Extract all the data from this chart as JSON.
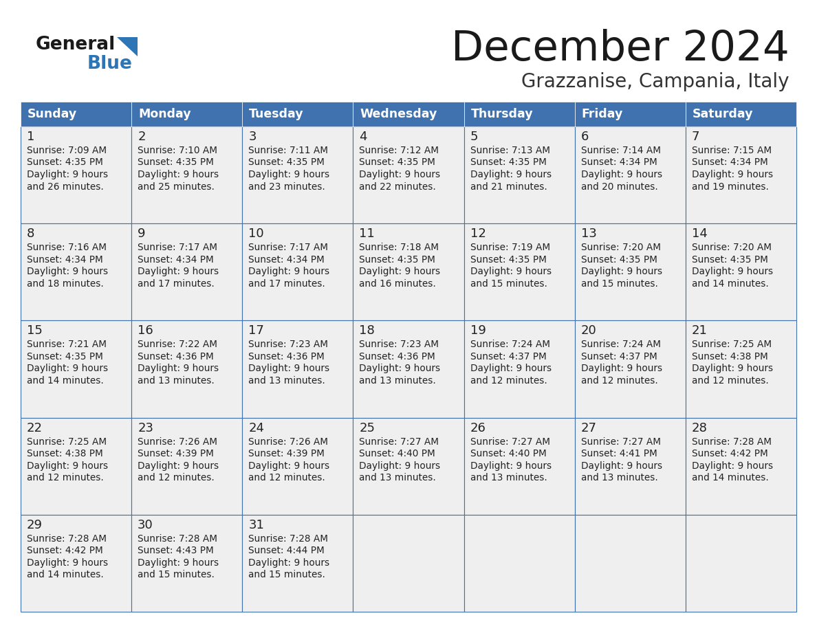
{
  "title": "December 2024",
  "subtitle": "Grazzanise, Campania, Italy",
  "days_of_week": [
    "Sunday",
    "Monday",
    "Tuesday",
    "Wednesday",
    "Thursday",
    "Friday",
    "Saturday"
  ],
  "header_bg": "#4072B0",
  "header_text": "#FFFFFF",
  "cell_border_color": "#4072B0",
  "cell_bg": "#EFEFEF",
  "text_color": "#222222",
  "title_color": "#1a1a1a",
  "subtitle_color": "#333333",
  "logo_general_color": "#1a1a1a",
  "logo_blue_color": "#2E75B6",
  "background_color": "#FFFFFF",
  "calendar_data": [
    [
      {
        "day": 1,
        "sunrise": "7:09 AM",
        "sunset": "4:35 PM",
        "daylight_h": "9 hours",
        "daylight_m": "and 26 minutes."
      },
      {
        "day": 2,
        "sunrise": "7:10 AM",
        "sunset": "4:35 PM",
        "daylight_h": "9 hours",
        "daylight_m": "and 25 minutes."
      },
      {
        "day": 3,
        "sunrise": "7:11 AM",
        "sunset": "4:35 PM",
        "daylight_h": "9 hours",
        "daylight_m": "and 23 minutes."
      },
      {
        "day": 4,
        "sunrise": "7:12 AM",
        "sunset": "4:35 PM",
        "daylight_h": "9 hours",
        "daylight_m": "and 22 minutes."
      },
      {
        "day": 5,
        "sunrise": "7:13 AM",
        "sunset": "4:35 PM",
        "daylight_h": "9 hours",
        "daylight_m": "and 21 minutes."
      },
      {
        "day": 6,
        "sunrise": "7:14 AM",
        "sunset": "4:34 PM",
        "daylight_h": "9 hours",
        "daylight_m": "and 20 minutes."
      },
      {
        "day": 7,
        "sunrise": "7:15 AM",
        "sunset": "4:34 PM",
        "daylight_h": "9 hours",
        "daylight_m": "and 19 minutes."
      }
    ],
    [
      {
        "day": 8,
        "sunrise": "7:16 AM",
        "sunset": "4:34 PM",
        "daylight_h": "9 hours",
        "daylight_m": "and 18 minutes."
      },
      {
        "day": 9,
        "sunrise": "7:17 AM",
        "sunset": "4:34 PM",
        "daylight_h": "9 hours",
        "daylight_m": "and 17 minutes."
      },
      {
        "day": 10,
        "sunrise": "7:17 AM",
        "sunset": "4:34 PM",
        "daylight_h": "9 hours",
        "daylight_m": "and 17 minutes."
      },
      {
        "day": 11,
        "sunrise": "7:18 AM",
        "sunset": "4:35 PM",
        "daylight_h": "9 hours",
        "daylight_m": "and 16 minutes."
      },
      {
        "day": 12,
        "sunrise": "7:19 AM",
        "sunset": "4:35 PM",
        "daylight_h": "9 hours",
        "daylight_m": "and 15 minutes."
      },
      {
        "day": 13,
        "sunrise": "7:20 AM",
        "sunset": "4:35 PM",
        "daylight_h": "9 hours",
        "daylight_m": "and 15 minutes."
      },
      {
        "day": 14,
        "sunrise": "7:20 AM",
        "sunset": "4:35 PM",
        "daylight_h": "9 hours",
        "daylight_m": "and 14 minutes."
      }
    ],
    [
      {
        "day": 15,
        "sunrise": "7:21 AM",
        "sunset": "4:35 PM",
        "daylight_h": "9 hours",
        "daylight_m": "and 14 minutes."
      },
      {
        "day": 16,
        "sunrise": "7:22 AM",
        "sunset": "4:36 PM",
        "daylight_h": "9 hours",
        "daylight_m": "and 13 minutes."
      },
      {
        "day": 17,
        "sunrise": "7:23 AM",
        "sunset": "4:36 PM",
        "daylight_h": "9 hours",
        "daylight_m": "and 13 minutes."
      },
      {
        "day": 18,
        "sunrise": "7:23 AM",
        "sunset": "4:36 PM",
        "daylight_h": "9 hours",
        "daylight_m": "and 13 minutes."
      },
      {
        "day": 19,
        "sunrise": "7:24 AM",
        "sunset": "4:37 PM",
        "daylight_h": "9 hours",
        "daylight_m": "and 12 minutes."
      },
      {
        "day": 20,
        "sunrise": "7:24 AM",
        "sunset": "4:37 PM",
        "daylight_h": "9 hours",
        "daylight_m": "and 12 minutes."
      },
      {
        "day": 21,
        "sunrise": "7:25 AM",
        "sunset": "4:38 PM",
        "daylight_h": "9 hours",
        "daylight_m": "and 12 minutes."
      }
    ],
    [
      {
        "day": 22,
        "sunrise": "7:25 AM",
        "sunset": "4:38 PM",
        "daylight_h": "9 hours",
        "daylight_m": "and 12 minutes."
      },
      {
        "day": 23,
        "sunrise": "7:26 AM",
        "sunset": "4:39 PM",
        "daylight_h": "9 hours",
        "daylight_m": "and 12 minutes."
      },
      {
        "day": 24,
        "sunrise": "7:26 AM",
        "sunset": "4:39 PM",
        "daylight_h": "9 hours",
        "daylight_m": "and 12 minutes."
      },
      {
        "day": 25,
        "sunrise": "7:27 AM",
        "sunset": "4:40 PM",
        "daylight_h": "9 hours",
        "daylight_m": "and 13 minutes."
      },
      {
        "day": 26,
        "sunrise": "7:27 AM",
        "sunset": "4:40 PM",
        "daylight_h": "9 hours",
        "daylight_m": "and 13 minutes."
      },
      {
        "day": 27,
        "sunrise": "7:27 AM",
        "sunset": "4:41 PM",
        "daylight_h": "9 hours",
        "daylight_m": "and 13 minutes."
      },
      {
        "day": 28,
        "sunrise": "7:28 AM",
        "sunset": "4:42 PM",
        "daylight_h": "9 hours",
        "daylight_m": "and 14 minutes."
      }
    ],
    [
      {
        "day": 29,
        "sunrise": "7:28 AM",
        "sunset": "4:42 PM",
        "daylight_h": "9 hours",
        "daylight_m": "and 14 minutes."
      },
      {
        "day": 30,
        "sunrise": "7:28 AM",
        "sunset": "4:43 PM",
        "daylight_h": "9 hours",
        "daylight_m": "and 15 minutes."
      },
      {
        "day": 31,
        "sunrise": "7:28 AM",
        "sunset": "4:44 PM",
        "daylight_h": "9 hours",
        "daylight_m": "and 15 minutes."
      },
      null,
      null,
      null,
      null
    ]
  ]
}
